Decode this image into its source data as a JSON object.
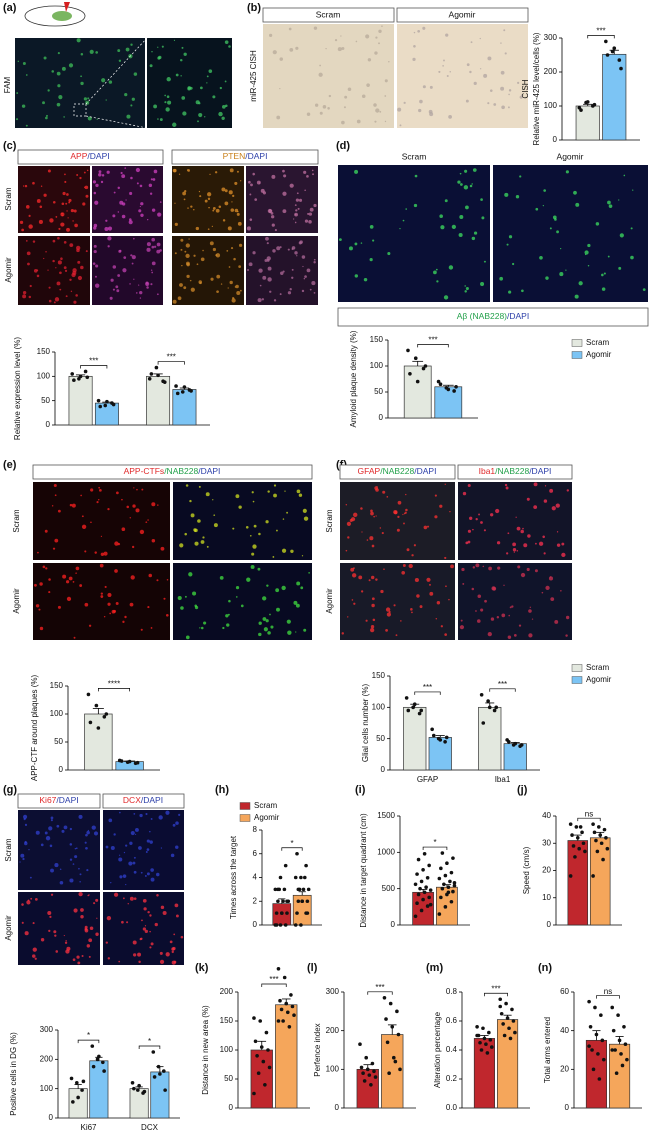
{
  "panels": {
    "a": {
      "label": "(a)",
      "side_label": "FAM"
    },
    "b": {
      "label": "(b)",
      "headers": [
        "Scram",
        "Agomir"
      ],
      "side_label": "miR-425 CISH"
    },
    "c": {
      "label": "(c)",
      "headers": [
        [
          "APP",
          "/DAPI"
        ],
        [
          "PTEN",
          "/DAPI"
        ]
      ],
      "rows": [
        "Scram",
        "Agomir"
      ]
    },
    "d": {
      "label": "(d)",
      "headers": [
        "Scram",
        "Agomir"
      ],
      "caption": [
        "Aβ (NAB228)",
        "/DAPI"
      ]
    },
    "e": {
      "label": "(e)",
      "headers": [
        [
          "APP-CTFs",
          "/NAB228",
          "/DAPI"
        ]
      ],
      "rows": [
        "Scram",
        "Agomir"
      ]
    },
    "f": {
      "label": "(f)",
      "headers": [
        [
          "GFAP",
          "/NAB228",
          "/DAPI"
        ],
        [
          "Iba1",
          "/NAB228",
          "/DAPI"
        ]
      ],
      "rows": [
        "Scram",
        "Agomir"
      ]
    },
    "g": {
      "label": "(g)",
      "headers": [
        [
          "Ki67",
          "/DAPI"
        ],
        [
          "DCX",
          "/DAPI"
        ]
      ],
      "rows": [
        "Scram",
        "Agomir"
      ]
    },
    "h": {
      "label": "(h)"
    },
    "i": {
      "label": "(i)"
    },
    "j": {
      "label": "(j)"
    },
    "k": {
      "label": "(k)"
    },
    "l": {
      "label": "(l)"
    },
    "m": {
      "label": "(m)"
    },
    "n": {
      "label": "(n)"
    }
  },
  "chart_data": [
    {
      "type": "bar",
      "ylabel": [
        "CISH",
        "Relative miR-425 level/cells (%)"
      ],
      "ylim": [
        0,
        300
      ],
      "yticks": [
        0,
        100,
        200,
        300
      ],
      "significance": [
        "***"
      ],
      "series": [
        {
          "color": "#e3e8df",
          "values": [
            100
          ],
          "errors": [
            5
          ],
          "points": [
            [
              95,
              110,
              100,
              88,
              112,
              104
            ]
          ]
        },
        {
          "color": "#7cc4f4",
          "values": [
            252
          ],
          "errors": [
            12
          ],
          "points": [
            [
              290,
              260,
              235,
              250,
              270,
              210
            ]
          ]
        }
      ]
    },
    {
      "type": "bar",
      "ylabel": "Relative expression level (%)",
      "ylim": [
        0,
        150
      ],
      "yticks": [
        0,
        50,
        100,
        150
      ],
      "significance": [
        "***",
        "***"
      ],
      "series": [
        {
          "color": "#e3e8df",
          "values": [
            100,
            100
          ],
          "errors": [
            3,
            5
          ],
          "points": [
            [
              105,
              95,
              110,
              92,
              100,
              98
            ],
            [
              95,
              118,
              90,
              105,
              102,
              88
            ]
          ]
        },
        {
          "color": "#7cc4f4",
          "values": [
            45,
            73
          ],
          "errors": [
            2,
            3
          ],
          "points": [
            [
              50,
              40,
              45,
              38,
              48,
              42
            ],
            [
              80,
              68,
              72,
              65,
              78,
              70
            ]
          ]
        }
      ]
    },
    {
      "type": "bar",
      "ylabel": "Amyloid plaque density (%)",
      "ylim": [
        0,
        150
      ],
      "yticks": [
        0,
        50,
        100,
        150
      ],
      "significance": [
        "***"
      ],
      "legend": "right",
      "series": [
        {
          "name": "Scram",
          "color": "#e3e8df",
          "values": [
            100
          ],
          "errors": [
            9
          ],
          "points": [
            [
              130,
              115,
              95,
              85,
              70,
              100
            ]
          ]
        },
        {
          "name": "Agomir",
          "color": "#7cc4f4",
          "values": [
            60
          ],
          "errors": [
            3
          ],
          "points": [
            [
              70,
              58,
              52,
              65,
              55,
              60
            ]
          ]
        }
      ]
    },
    {
      "type": "bar",
      "ylabel": "APP-CTF around plaques (%)",
      "ylim": [
        0,
        150
      ],
      "yticks": [
        0,
        50,
        100,
        150
      ],
      "significance": [
        "****"
      ],
      "series": [
        {
          "color": "#e3e8df",
          "values": [
            100
          ],
          "errors": [
            10
          ],
          "points": [
            [
              135,
              115,
              95,
              85,
              75,
              100
            ]
          ]
        },
        {
          "color": "#7cc4f4",
          "values": [
            15
          ],
          "errors": [
            1
          ],
          "points": [
            [
              17,
              14,
              12,
              16,
              15,
              13
            ]
          ]
        }
      ]
    },
    {
      "type": "bar",
      "ylabel": "Glial cells number (%)",
      "ylim": [
        0,
        150
      ],
      "yticks": [
        0,
        50,
        100,
        150
      ],
      "categories": [
        "GFAP",
        "Iba1"
      ],
      "significance": [
        "***",
        "***"
      ],
      "legend": "right",
      "series": [
        {
          "name": "Scram",
          "color": "#e3e8df",
          "values": [
            100,
            100
          ],
          "errors": [
            5,
            7
          ],
          "points": [
            [
              115,
              100,
              90,
              95,
              105,
              95
            ],
            [
              120,
              110,
              95,
              75,
              100,
              100
            ]
          ]
        },
        {
          "name": "Agomir",
          "color": "#7cc4f4",
          "values": [
            52,
            42
          ],
          "errors": [
            3,
            2
          ],
          "points": [
            [
              65,
              50,
              45,
              55,
              48,
              52
            ],
            [
              48,
              40,
              38,
              45,
              42,
              40
            ]
          ]
        }
      ]
    },
    {
      "type": "bar",
      "ylabel": "Positive cells in DG (%)",
      "ylim": [
        0,
        300
      ],
      "yticks": [
        0,
        100,
        200,
        300
      ],
      "categories": [
        "Ki67",
        "DCX"
      ],
      "significance": [
        "*",
        "*"
      ],
      "series": [
        {
          "color": "#e3e8df",
          "values": [
            100,
            100
          ],
          "errors": [
            14,
            6
          ],
          "points": [
            [
              135,
              120,
              95,
              55,
              70,
              125
            ],
            [
              120,
              95,
              85,
              100,
              110,
              90
            ]
          ]
        },
        {
          "color": "#7cc4f4",
          "values": [
            195,
            157
          ],
          "errors": [
            12,
            18
          ],
          "points": [
            [
              245,
              200,
              190,
              175,
              210,
              160
            ],
            [
              225,
              175,
              160,
              140,
              150,
              95
            ]
          ]
        }
      ]
    },
    {
      "type": "bar",
      "ylabel": "Times across the target",
      "ylim": [
        0,
        8
      ],
      "yticks": [
        0,
        2,
        4,
        6,
        8
      ],
      "significance": [
        "*"
      ],
      "legend": "top",
      "series": [
        {
          "name": "Scram",
          "color": "#c0272d",
          "values": [
            1.8
          ],
          "errors": [
            0.4
          ],
          "points": [
            [
              0,
              0,
              0,
              1,
              1,
              1,
              2,
              2,
              2,
              3,
              3,
              3,
              4,
              5,
              0,
              1,
              2,
              3
            ]
          ]
        },
        {
          "name": "Agomir",
          "color": "#f5a65b",
          "values": [
            2.5
          ],
          "errors": [
            0.3
          ],
          "points": [
            [
              0,
              0,
              1,
              1,
              2,
              2,
              2,
              3,
              3,
              3,
              4,
              4,
              4,
              5,
              6,
              2,
              1,
              3
            ]
          ]
        }
      ]
    },
    {
      "type": "bar",
      "ylabel": "Distance in target quadrant (cm)",
      "ylim": [
        0,
        1500
      ],
      "yticks": [
        0,
        500,
        1000,
        1500
      ],
      "significance": [
        "*"
      ],
      "series": [
        {
          "color": "#c0272d",
          "values": [
            450
          ],
          "errors": [
            40
          ],
          "points": [
            [
              120,
              200,
              260,
              300,
              350,
              380,
              420,
              450,
              480,
              500,
              520,
              560,
              600,
              650,
              700,
              760,
              820,
              900,
              980,
              280
            ]
          ]
        },
        {
          "color": "#f5a65b",
          "values": [
            520
          ],
          "errors": [
            35
          ],
          "points": [
            [
              150,
              250,
              320,
              380,
              420,
              460,
              500,
              520,
              540,
              560,
              600,
              640,
              680,
              720,
              780,
              850,
              920,
              990,
              450,
              580
            ]
          ]
        }
      ]
    },
    {
      "type": "bar",
      "ylabel": "Speed (cm/s)",
      "ylim": [
        0,
        40
      ],
      "yticks": [
        0,
        10,
        20,
        30,
        40
      ],
      "significance": [
        "ns"
      ],
      "series": [
        {
          "color": "#c0272d",
          "values": [
            31
          ],
          "errors": [
            2
          ],
          "points": [
            [
              37,
              36,
              34,
              33,
              32,
              30,
              29,
              28,
              27,
              25,
              36,
              18
            ]
          ]
        },
        {
          "color": "#f5a65b",
          "values": [
            32
          ],
          "errors": [
            2
          ],
          "points": [
            [
              37,
              36,
              35,
              34,
              33,
              32,
              31,
              30,
              28,
              27,
              24,
              18
            ]
          ]
        }
      ]
    },
    {
      "type": "bar",
      "ylabel": "Distance in new area (%)",
      "ylim": [
        0,
        200
      ],
      "yticks": [
        0,
        50,
        100,
        150,
        200
      ],
      "significance": [
        "***"
      ],
      "series": [
        {
          "color": "#c0272d",
          "values": [
            100
          ],
          "errors": [
            15
          ],
          "points": [
            [
              155,
              150,
              130,
              115,
              105,
              100,
              90,
              80,
              70,
              60,
              40,
              25
            ]
          ]
        },
        {
          "color": "#f5a65b",
          "values": [
            178
          ],
          "errors": [
            10
          ],
          "points": [
            [
              240,
              225,
              195,
              185,
              180,
              175,
              170,
              165,
              160,
              150,
              140,
              150
            ]
          ]
        }
      ]
    },
    {
      "type": "bar",
      "ylabel": "Perfence index",
      "ylim": [
        0,
        300
      ],
      "yticks": [
        0,
        100,
        200,
        300
      ],
      "significance": [
        "***"
      ],
      "series": [
        {
          "color": "#c0272d",
          "values": [
            100
          ],
          "errors": [
            12
          ],
          "points": [
            [
              165,
              130,
              115,
              105,
              100,
              95,
              90,
              85,
              80,
              70,
              60
            ]
          ]
        },
        {
          "color": "#f5a65b",
          "values": [
            190
          ],
          "errors": [
            25
          ],
          "points": [
            [
              285,
              270,
              250,
              230,
              210,
              190,
              170,
              130,
              100,
              90,
              120
            ]
          ]
        }
      ]
    },
    {
      "type": "bar",
      "ylabel": "Alteration percentage",
      "ylim": [
        0,
        0.8
      ],
      "yticks": [
        {
          "value": 0,
          "label": "0.0"
        },
        0.2,
        0.4,
        0.6,
        0.8
      ],
      "significance": [
        "***"
      ],
      "series": [
        {
          "color": "#c0272d",
          "values": [
            0.48
          ],
          "errors": [
            0.02
          ],
          "points": [
            [
              0.56,
              0.55,
              0.52,
              0.5,
              0.48,
              0.47,
              0.45,
              0.44,
              0.42,
              0.4,
              0.38,
              0.5
            ]
          ]
        },
        {
          "color": "#f5a65b",
          "values": [
            0.61
          ],
          "errors": [
            0.03
          ],
          "points": [
            [
              0.75,
              0.72,
              0.68,
              0.65,
              0.62,
              0.6,
              0.58,
              0.55,
              0.52,
              0.5,
              0.48,
              0.7
            ]
          ]
        }
      ]
    },
    {
      "type": "bar",
      "ylabel": "Total arms entered",
      "ylim": [
        0,
        60
      ],
      "yticks": [
        0,
        20,
        40,
        60
      ],
      "significance": [
        "ns"
      ],
      "series": [
        {
          "color": "#c0272d",
          "values": [
            35
          ],
          "errors": [
            5
          ],
          "points": [
            [
              55,
              52,
              48,
              42,
              38,
              35,
              30,
              28,
              25,
              20,
              15,
              32
            ]
          ]
        },
        {
          "color": "#f5a65b",
          "values": [
            33
          ],
          "errors": [
            4
          ],
          "points": [
            [
              52,
              48,
              42,
              40,
              35,
              33,
              30,
              28,
              25,
              18,
              22,
              30
            ]
          ]
        }
      ]
    }
  ]
}
